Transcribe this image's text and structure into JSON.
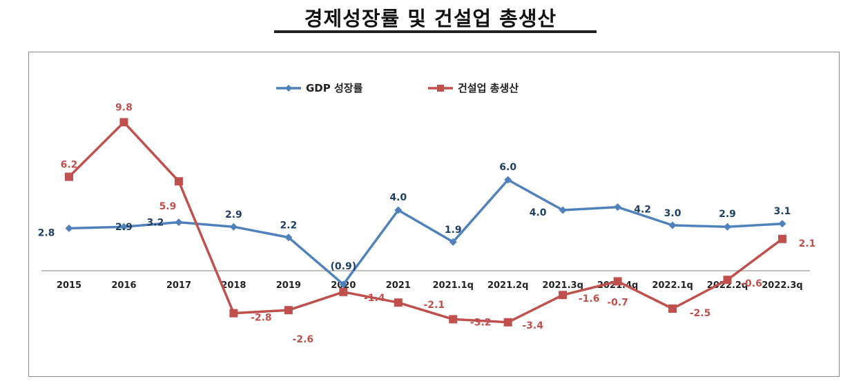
{
  "page": {
    "title": "경제성장률 및 건설업 총생산"
  },
  "chart_data": {
    "type": "line",
    "title": "경제성장률 및 건설업 총생산",
    "categories": [
      "2015",
      "2016",
      "2017",
      "2018",
      "2019",
      "2020",
      "2021",
      "2021.1q",
      "2021.2q",
      "2021.3q",
      "2021.4q",
      "2022.1q",
      "2022.2q",
      "2022.3q"
    ],
    "series": [
      {
        "name": "GDP 성장률",
        "color": "#4f81bd",
        "marker": "diamond",
        "values": [
          2.8,
          2.9,
          3.2,
          2.9,
          2.2,
          -0.9,
          4.0,
          1.9,
          6.0,
          4.0,
          4.2,
          3.0,
          2.9,
          3.1
        ],
        "labels": [
          "2.8",
          "2.9",
          "3.2",
          "2.9",
          "2.2",
          "(0.9)",
          "4.0",
          "1.9",
          "6.0",
          "4.0",
          "4.2",
          "3.0",
          "2.9",
          "3.1"
        ]
      },
      {
        "name": "건설업 총생산",
        "color": "#c0504d",
        "marker": "square",
        "values": [
          6.2,
          9.8,
          5.9,
          -2.8,
          -2.6,
          -1.4,
          -2.1,
          -3.2,
          -3.4,
          -1.6,
          -0.7,
          -2.5,
          -0.6,
          2.1
        ],
        "labels": [
          "6.2",
          "9.8",
          "5.9",
          "-2.8",
          "-2.6",
          "-1.4",
          "-2.1",
          "-3.2",
          "-3.4",
          "-1.6",
          "-0.7",
          "-2.5",
          "-0.6",
          "2.1"
        ]
      }
    ],
    "xlabel": "",
    "ylabel": "",
    "ylim": [
      -5,
      12
    ],
    "grid": false,
    "legend": "top-center"
  }
}
